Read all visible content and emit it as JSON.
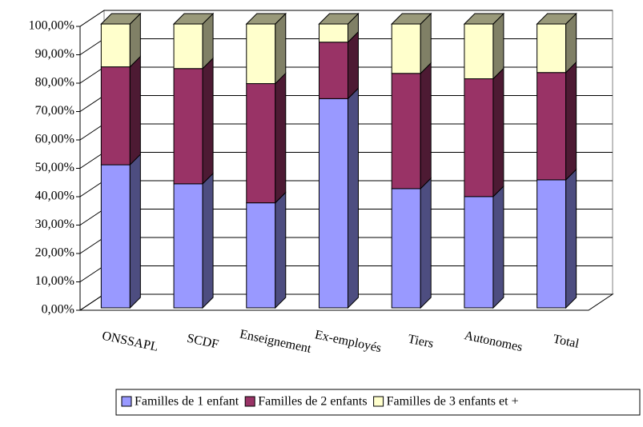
{
  "chart_data": {
    "type": "bar3d_stacked",
    "categories": [
      "ONSSAPL",
      "SCDF",
      "Enseignement",
      "Ex-employés",
      "Tiers",
      "Autonomes",
      "Total"
    ],
    "series": [
      {
        "name": "Familles de 1 enfant",
        "color": "#9999ff",
        "values": [
          50.4,
          43.7,
          37.0,
          73.7,
          42.0,
          39.2,
          45.1
        ]
      },
      {
        "name": "Familles de 2 enfants",
        "color": "#993366",
        "values": [
          34.5,
          40.6,
          42.0,
          19.9,
          40.6,
          41.5,
          37.8
        ]
      },
      {
        "name": "Familles de 3 enfants et +",
        "color": "#ffffcc",
        "values": [
          15.1,
          15.7,
          21.0,
          6.4,
          17.4,
          19.3,
          17.1
        ]
      }
    ],
    "ylim": [
      0,
      100
    ],
    "yticks": [
      {
        "value": 0,
        "label": "0,00%"
      },
      {
        "value": 10,
        "label": "10,00%"
      },
      {
        "value": 20,
        "label": "20,00%"
      },
      {
        "value": 30,
        "label": "30,00%"
      },
      {
        "value": 40,
        "label": "40,00%"
      },
      {
        "value": 50,
        "label": "50,00%"
      },
      {
        "value": 60,
        "label": "60,00%"
      },
      {
        "value": 70,
        "label": "70,00%"
      },
      {
        "value": 80,
        "label": "80,00%"
      },
      {
        "value": 90,
        "label": "90,00%"
      },
      {
        "value": 100,
        "label": "100,00%"
      }
    ],
    "grid": true,
    "legend": "bottom"
  }
}
